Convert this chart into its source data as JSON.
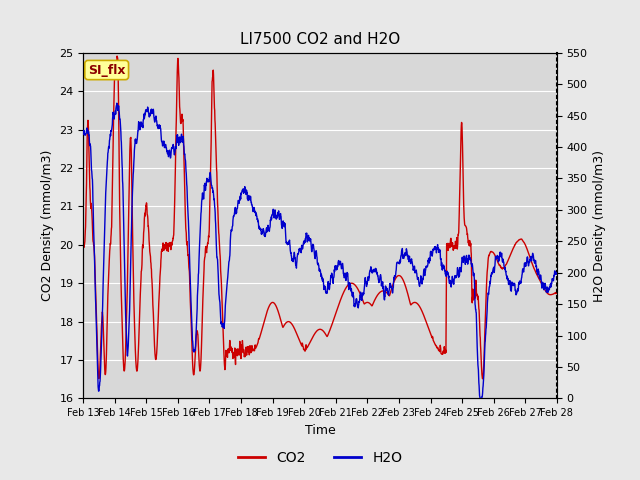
{
  "title": "LI7500 CO2 and H2O",
  "xlabel": "Time",
  "ylabel_left": "CO2 Density (mmol/m3)",
  "ylabel_right": "H2O Density (mmol/m3)",
  "annotation": "SI_flx",
  "ylim_left": [
    16.0,
    25.0
  ],
  "ylim_right": [
    0,
    550
  ],
  "yticks_left": [
    16.0,
    17.0,
    18.0,
    19.0,
    20.0,
    21.0,
    22.0,
    23.0,
    24.0,
    25.0
  ],
  "yticks_right": [
    0,
    50,
    100,
    150,
    200,
    250,
    300,
    350,
    400,
    450,
    500,
    550
  ],
  "xtick_labels": [
    "Feb 13",
    "Feb 14",
    "Feb 15",
    "Feb 16",
    "Feb 17",
    "Feb 18",
    "Feb 19",
    "Feb 20",
    "Feb 21",
    "Feb 22",
    "Feb 23",
    "Feb 24",
    "Feb 25",
    "Feb 26",
    "Feb 27",
    "Feb 28"
  ],
  "co2_color": "#CC0000",
  "h2o_color": "#0000CC",
  "fig_facecolor": "#E8E8E8",
  "plot_facecolor": "#D8D8D8",
  "annotation_bg": "#FFFF99",
  "annotation_border": "#CCAA00",
  "annotation_text_color": "#8B0000",
  "linewidth": 1.0,
  "grid_color": "#FFFFFF",
  "n_points": 2000
}
